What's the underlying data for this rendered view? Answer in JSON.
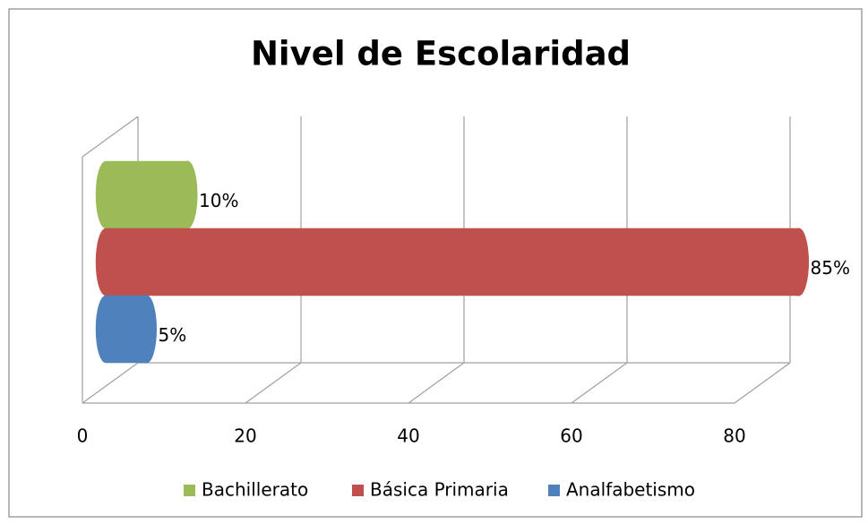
{
  "chart_data": {
    "type": "bar3d",
    "orientation": "horizontal",
    "title": "Nivel de Escolaridad",
    "categories": [
      null
    ],
    "series": [
      {
        "name": "Bachillerato",
        "color": "#9bbb59",
        "values": [
          10
        ],
        "value_labels": [
          "10%"
        ]
      },
      {
        "name": "Básica Primaria",
        "color": "#c0504d",
        "values": [
          85
        ],
        "value_labels": [
          "85%"
        ]
      },
      {
        "name": "Analfabetismo",
        "color": "#4f81bd",
        "values": [
          5
        ],
        "value_labels": [
          "5%"
        ]
      }
    ],
    "xlim": [
      0,
      80
    ],
    "xticks": [
      0,
      20,
      40,
      60,
      80
    ],
    "grid": true,
    "legend": "bottom"
  }
}
